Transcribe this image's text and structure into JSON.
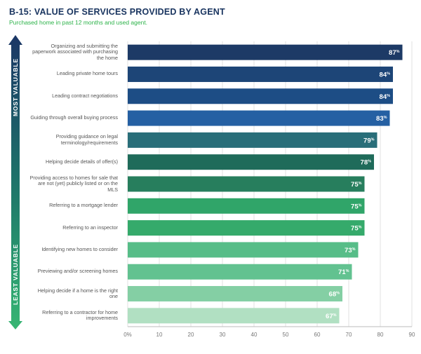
{
  "title": "B-15: VALUE OF SERVICES PROVIDED BY AGENT",
  "subtitle": "Purchased home in past 12 months and used agent.",
  "arrow": {
    "top_label": "MOST VALUABLE",
    "bottom_label": "LEAST VALUABLE"
  },
  "chart_data": {
    "type": "bar",
    "orientation": "horizontal",
    "categories": [
      "Organizing and submitting the paperwork associated with purchasing the home",
      "Leading private home tours",
      "Leading contract negotiations",
      "Guiding through overall buying process",
      "Providing guidance on legal terminology/requirements",
      "Helping decide details of offer(s)",
      "Providing access to homes for sale that are not (yet) publicly listed or on the MLS",
      "Referring to a mortgage lender",
      "Referring to an inspector",
      "Identifying new homes to consider",
      "Previewing and/or screening homes",
      "Helping decide if a home is the right one",
      "Referring to a contractor for home improvements"
    ],
    "values": [
      87,
      84,
      84,
      83,
      79,
      78,
      75,
      75,
      75,
      73,
      71,
      68,
      67
    ],
    "value_suffix": "%",
    "bar_colors": [
      "#1d3a66",
      "#1d4577",
      "#1d4d85",
      "#2560a3",
      "#296e79",
      "#1f6b5a",
      "#277e5d",
      "#30a569",
      "#35aa6b",
      "#57bd88",
      "#62c290",
      "#84cfa4",
      "#b1e0c2"
    ],
    "xlim": [
      0,
      90
    ],
    "xticks": [
      "0%",
      "10",
      "20",
      "30",
      "40",
      "50",
      "60",
      "70",
      "80",
      "90"
    ],
    "grid": true
  }
}
